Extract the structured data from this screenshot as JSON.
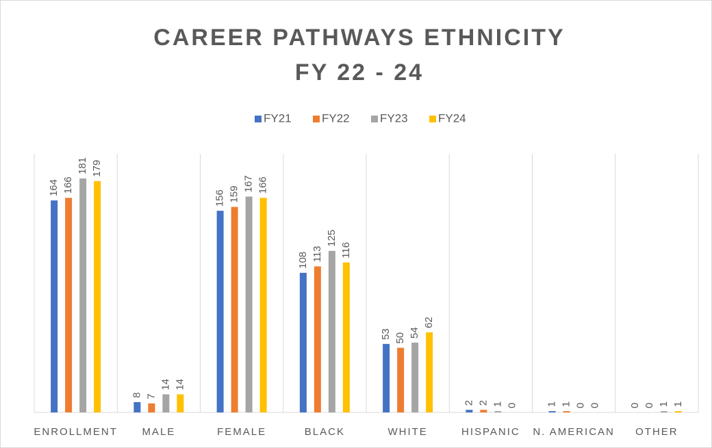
{
  "chart_data": {
    "type": "bar",
    "title": [
      "CAREER PATHWAYS ETHNICITY",
      "FY 22 - 24"
    ],
    "categories": [
      "ENROLLMENT",
      "MALE",
      "FEMALE",
      "BLACK",
      "WHITE",
      "HISPANIC",
      "N. AMERICAN",
      "OTHER"
    ],
    "series": [
      {
        "name": "FY21",
        "color": "#4472c4",
        "values": [
          164,
          8,
          156,
          108,
          53,
          2,
          1,
          0
        ]
      },
      {
        "name": "FY22",
        "color": "#ed7d31",
        "values": [
          166,
          7,
          159,
          113,
          50,
          2,
          1,
          0
        ]
      },
      {
        "name": "FY23",
        "color": "#a5a5a5",
        "values": [
          181,
          14,
          167,
          125,
          54,
          1,
          0,
          1
        ]
      },
      {
        "name": "FY24",
        "color": "#ffc000",
        "values": [
          179,
          14,
          166,
          116,
          62,
          0,
          0,
          1
        ]
      }
    ],
    "ylim": [
      0,
      200
    ],
    "legend": "top"
  }
}
